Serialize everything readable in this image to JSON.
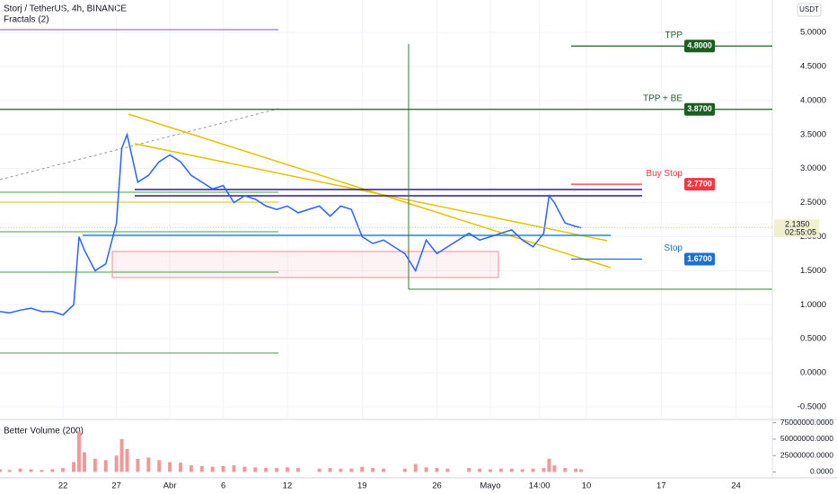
{
  "chart_data": {
    "type": "line",
    "title": "Storj / TetherUS, 4h, BINANCE",
    "indicator": "Fractals (2)",
    "currency": "USDT",
    "x": [
      16.1,
      17,
      18,
      19,
      20,
      21,
      22,
      23,
      23.5,
      24,
      25,
      26,
      27,
      27.5,
      28,
      29,
      30,
      31,
      32,
      33,
      34,
      35,
      36,
      37,
      38,
      39,
      40,
      41,
      42,
      43,
      44,
      46,
      47,
      48,
      49,
      50,
      51,
      52,
      54,
      55,
      56,
      57,
      58,
      60,
      61,
      62,
      63,
      64,
      65,
      66,
      67,
      67.5,
      68,
      69,
      70,
      70.5
    ],
    "series": [
      {
        "color": "#2962ff",
        "values": [
          0.9,
          0.88,
          0.92,
          0.95,
          0.9,
          0.9,
          0.85,
          1.0,
          2.0,
          1.8,
          1.5,
          1.6,
          2.2,
          3.3,
          3.5,
          2.8,
          2.9,
          3.1,
          3.2,
          3.1,
          2.9,
          2.8,
          2.7,
          2.75,
          2.5,
          2.6,
          2.55,
          2.45,
          2.4,
          2.45,
          2.35,
          2.45,
          2.3,
          2.45,
          2.4,
          2.0,
          1.9,
          1.95,
          1.75,
          1.5,
          1.95,
          1.75,
          1.85,
          2.05,
          1.95,
          2.0,
          2.05,
          2.1,
          1.95,
          1.85,
          2.05,
          2.6,
          2.5,
          2.2,
          2.15,
          2.13
        ]
      }
    ],
    "xlim": [
      16.1,
      88.4
    ],
    "xticks": [
      22,
      27,
      {
        "value": 32,
        "label": "Abr"
      },
      {
        "value": 37,
        "label": "6"
      },
      {
        "value": 43,
        "label": "12"
      },
      {
        "value": 50,
        "label": "19"
      },
      {
        "value": 57,
        "label": "26"
      },
      {
        "value": 62,
        "label": "Mayo"
      },
      {
        "value": 66.6,
        "label": "14:00"
      },
      {
        "value": 71,
        "label": "10"
      },
      {
        "value": 78,
        "label": "17"
      },
      {
        "value": 85,
        "label": "24"
      }
    ],
    "ylim": [
      -0.685,
      5.476
    ],
    "yticks": [
      {
        "value": -0.5,
        "label": "-0.5000"
      },
      {
        "value": 0,
        "label": "0.0000"
      },
      {
        "value": 0.5,
        "label": "0.5000"
      },
      {
        "value": 1,
        "label": "1.0000"
      },
      {
        "value": 1.5,
        "label": "1.5000"
      },
      {
        "value": 2,
        "label": "2.0000"
      },
      {
        "value": 2.5,
        "label": "2.5000"
      },
      {
        "value": 3,
        "label": "3.0000"
      },
      {
        "value": 3.5,
        "label": "3.5000"
      },
      {
        "value": 4,
        "label": "4.0000"
      },
      {
        "value": 4.5,
        "label": "4.5000"
      },
      {
        "value": 5,
        "label": "5.0000"
      }
    ],
    "levels": [
      {
        "label": "TPP",
        "value": 4.8,
        "value_label": "4.8000",
        "color": "#1b5e20"
      },
      {
        "label": "TPP + BE",
        "value": 3.87,
        "value_label": "3.8700",
        "color": "#1b5e20"
      },
      {
        "label": "Buy Stop",
        "value": 2.77,
        "value_label": "2.7700",
        "color": "#f23645"
      },
      {
        "label": "Stop",
        "value": 1.67,
        "value_label": "1.6700",
        "color": "#1e6fd0"
      }
    ],
    "last_price": {
      "value": 2.135,
      "label": "2.1350",
      "countdown": "02:55:05"
    },
    "volume": {
      "title": "Better Volume (200)",
      "color": "#ef9a9a",
      "values": [
        4000000,
        3000000,
        5000000,
        4000000,
        3000000,
        4000000,
        6000000,
        15000000,
        62000000,
        30000000,
        20000000,
        18000000,
        25000000,
        50000000,
        35000000,
        20000000,
        22000000,
        18000000,
        15000000,
        14000000,
        10000000,
        9000000,
        8000000,
        9000000,
        10000000,
        8000000,
        7000000,
        6000000,
        6000000,
        7000000,
        6000000,
        5000000,
        6000000,
        5000000,
        5000000,
        8000000,
        6000000,
        5000000,
        5000000,
        12000000,
        7000000,
        6000000,
        5000000,
        6000000,
        5000000,
        4000000,
        5000000,
        5000000,
        4000000,
        5000000,
        6000000,
        20000000,
        10000000,
        6000000,
        5000000,
        4000000
      ],
      "ylim": [
        -9000000,
        80000000
      ],
      "yticks": [
        {
          "value": 0,
          "label": "0.0000"
        },
        {
          "value": 25000000,
          "label": "25000000.0000"
        },
        {
          "value": 50000000,
          "label": "50000000.0000"
        },
        {
          "value": 75000000,
          "label": "75000000.0000"
        }
      ]
    }
  }
}
